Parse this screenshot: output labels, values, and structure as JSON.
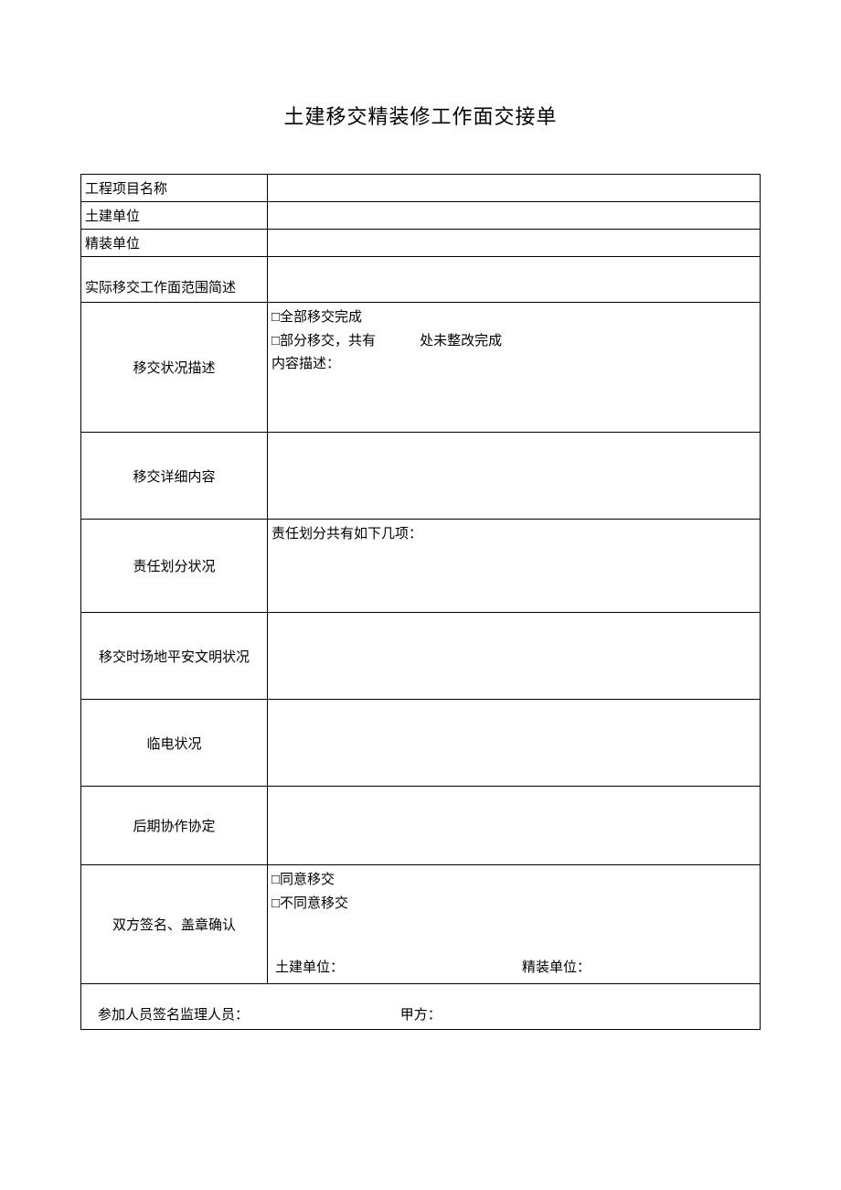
{
  "document": {
    "title": "土建移交精装修工作面交接单",
    "rows": {
      "project_name": "工程项目名称",
      "civil_unit": "土建单位",
      "decoration_unit": "精装单位",
      "scope_label": "实际移交工作面范围简述",
      "status_label": "移交状况描述",
      "status_line1": "□全部移交完成",
      "status_line2_prefix": "□部分移交，共有",
      "status_line2_suffix": "处未整改完成",
      "status_line3": "内容描述：",
      "detail_label": "移交详细内容",
      "responsibility_label": "责任划分状况",
      "responsibility_content": "责任划分共有如下几项：",
      "safety_label": "移交时场地平安文明状况",
      "electric_label": "临电状况",
      "agreement_label": "后期协作协定",
      "sign_label": "双方签名、盖章确认",
      "sign_line1": "□同意移交",
      "sign_line2": "□不同意移交",
      "sign_civil": "土建单位：",
      "sign_decoration": "精装单位：",
      "footer_supervisor": "参加人员签名监理人员：",
      "footer_party_a": "甲方："
    },
    "style": {
      "background_color": "#ffffff",
      "border_color": "#000000",
      "font_size_title": 22,
      "font_size_body": 15,
      "label_col_width": 204
    }
  }
}
